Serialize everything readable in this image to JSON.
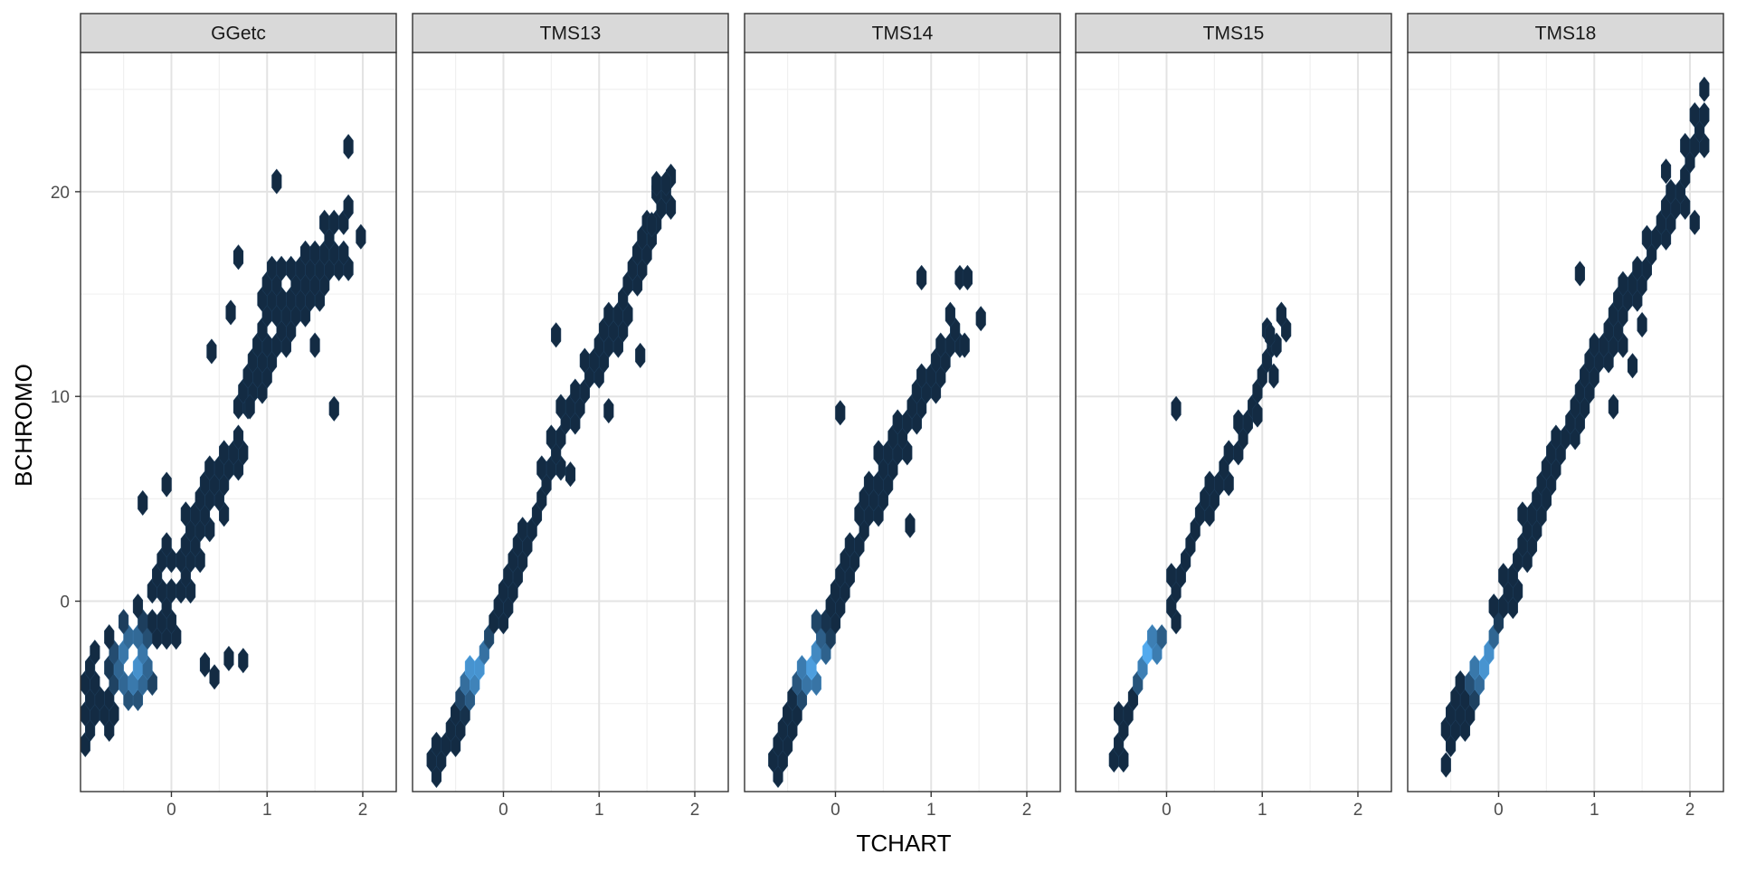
{
  "chart_data": {
    "type": "hexbin",
    "xlabel": "TCHART",
    "ylabel": "BCHROMO",
    "xlim": [
      -0.95,
      2.35
    ],
    "ylim": [
      -9.3,
      26.8
    ],
    "x_ticks": [
      0,
      1,
      2
    ],
    "y_ticks": [
      0,
      10,
      20
    ],
    "grid": true,
    "color_scale": {
      "low": "#132B43",
      "high": "#56B1F7"
    },
    "panels": [
      {
        "name": "GGetc",
        "ridge": {
          "x": [
            -0.8,
            -0.5,
            -0.25,
            0.0,
            0.3,
            0.7,
            1.0,
            1.4,
            1.8
          ],
          "y": [
            -5,
            -3.5,
            -2,
            0,
            4,
            8,
            13,
            15,
            18
          ]
        },
        "hot": [
          -0.4,
          -3.0
        ],
        "spread_x": 0.2,
        "spread_y": 1.6,
        "density": 0.85,
        "extra_points": [
          [
            0.42,
            12.2
          ],
          [
            0.62,
            14.1
          ],
          [
            1.1,
            20.5
          ],
          [
            1.85,
            22.2
          ],
          [
            1.98,
            17.8
          ],
          [
            1.7,
            9.4
          ],
          [
            0.7,
            16.8
          ],
          [
            -0.05,
            5.7
          ],
          [
            -0.3,
            4.8
          ],
          [
            0.35,
            -3.1
          ],
          [
            0.6,
            -2.8
          ],
          [
            0.75,
            -2.9
          ],
          [
            0.45,
            -3.7
          ],
          [
            0.82,
            9.5
          ]
        ]
      },
      {
        "name": "TMS13",
        "ridge": {
          "x": [
            -0.65,
            -0.35,
            0.0,
            0.3,
            0.6,
            0.9,
            1.2,
            1.45,
            1.7
          ],
          "y": [
            -8,
            -4,
            0,
            4,
            8,
            11,
            14,
            17,
            20
          ]
        },
        "hot": [
          -0.3,
          -3.2
        ],
        "spread_x": 0.16,
        "spread_y": 0.9,
        "density": 1.0,
        "extra_points": [
          [
            1.6,
            20.4
          ],
          [
            1.7,
            20.4
          ],
          [
            1.55,
            18.4
          ],
          [
            0.55,
            13.0
          ],
          [
            1.43,
            12.0
          ],
          [
            1.1,
            9.3
          ],
          [
            0.7,
            6.2
          ]
        ]
      },
      {
        "name": "TMS14",
        "ridge": {
          "x": [
            -0.6,
            -0.3,
            0.0,
            0.3,
            0.6,
            0.9,
            1.2
          ],
          "y": [
            -7.5,
            -4,
            0,
            4,
            7,
            10,
            13
          ]
        },
        "hot": [
          -0.25,
          -3.0
        ],
        "spread_x": 0.14,
        "spread_y": 0.85,
        "density": 0.95,
        "extra_points": [
          [
            0.9,
            15.8
          ],
          [
            1.3,
            15.8
          ],
          [
            1.38,
            15.8
          ],
          [
            1.52,
            13.8
          ],
          [
            1.35,
            12.5
          ],
          [
            0.05,
            9.2
          ],
          [
            0.78,
            3.7
          ]
        ]
      },
      {
        "name": "TMS15",
        "ridge": {
          "x": [
            -0.45,
            -0.2,
            0.05,
            0.35,
            0.65,
            0.95,
            1.2
          ],
          "y": [
            -6.5,
            -3,
            0,
            4,
            7,
            10,
            14
          ]
        },
        "hot": [
          -0.2,
          -2.5
        ],
        "spread_x": 0.13,
        "spread_y": 0.8,
        "density": 0.8,
        "extra_points": [
          [
            0.1,
            9.4
          ],
          [
            0.95,
            9.1
          ],
          [
            1.15,
            12.5
          ],
          [
            1.2,
            14.0
          ],
          [
            1.12,
            11.0
          ],
          [
            1.08,
            13.0
          ]
        ]
      },
      {
        "name": "TMS18",
        "ridge": {
          "x": [
            -0.5,
            -0.2,
            0.0,
            0.3,
            0.6,
            0.9,
            1.2,
            1.5,
            1.8,
            2.1
          ],
          "y": [
            -6.5,
            -3.5,
            -1,
            3,
            7,
            10,
            13,
            16,
            19,
            23
          ]
        },
        "hot": [
          -0.15,
          -2.8
        ],
        "spread_x": 0.15,
        "spread_y": 0.95,
        "density": 1.0,
        "extra_points": [
          [
            2.15,
            25.0
          ],
          [
            2.05,
            18.5
          ],
          [
            1.75,
            21.0
          ],
          [
            1.5,
            13.5
          ],
          [
            1.4,
            11.5
          ],
          [
            0.85,
            16.0
          ],
          [
            1.2,
            9.5
          ],
          [
            0.5,
            5.0
          ],
          [
            -0.55,
            -8.0
          ]
        ]
      }
    ]
  }
}
